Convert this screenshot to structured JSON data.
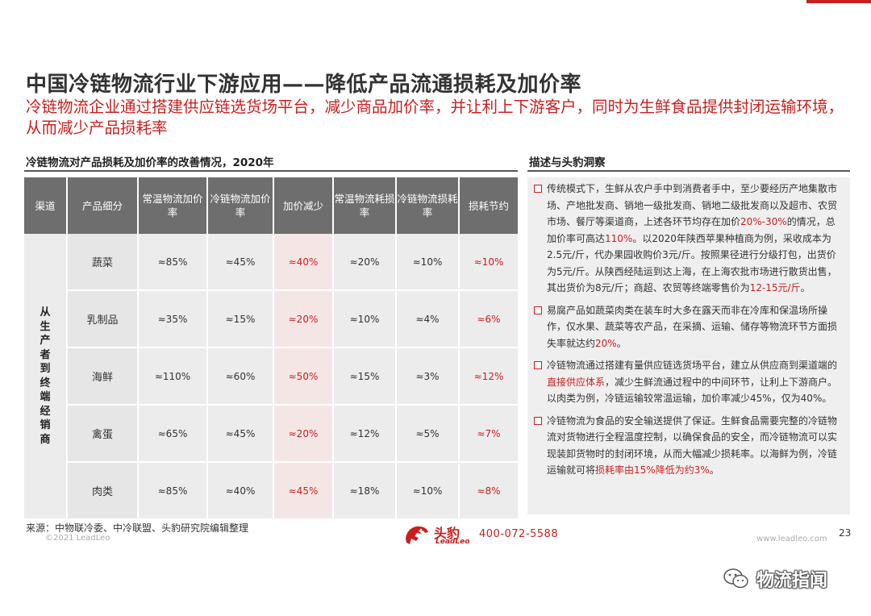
{
  "title": "中国冷链物流行业下游应用——降低产品流通损耗及加价率",
  "subtitle": "冷链物流企业通过搭建供应链选货场平台，减少商品加价率，并让利上下游客户，同时为生鲜食品提供封闭运输环境，从而减少产品损耗率",
  "left_section": {
    "heading": "冷链物流对产品损耗及加价率的改善情况，2020年"
  },
  "table": {
    "headers": [
      "渠道",
      "产品细分",
      "常温物流加价率",
      "冷链物流加价率",
      "加价减少",
      "常温物流耗损率",
      "冷链物流损耗率",
      "损耗节约"
    ],
    "channel": "从生产者到终端经销商",
    "rows": [
      {
        "cat": "蔬菜",
        "v1": "≈85%",
        "v2": "≈45%",
        "v3": "≈40%",
        "v4": "≈20%",
        "v5": "≈10%",
        "v6": "≈10%"
      },
      {
        "cat": "乳制品",
        "v1": "≈35%",
        "v2": "≈15%",
        "v3": "≈20%",
        "v4": "≈10%",
        "v5": "≈4%",
        "v6": "≈6%"
      },
      {
        "cat": "海鲜",
        "v1": "≈110%",
        "v2": "≈60%",
        "v3": "≈50%",
        "v4": "≈15%",
        "v5": "≈3%",
        "v6": "≈12%"
      },
      {
        "cat": "禽蛋",
        "v1": "≈65%",
        "v2": "≈45%",
        "v3": "≈20%",
        "v4": "≈12%",
        "v5": "≈5%",
        "v6": "≈7%"
      },
      {
        "cat": "肉类",
        "v1": "≈85%",
        "v2": "≈40%",
        "v3": "≈45%",
        "v4": "≈18%",
        "v5": "≈10%",
        "v6": "≈8%"
      }
    ]
  },
  "right_section": {
    "heading": "描述与头豹洞察",
    "items": [
      {
        "a": "传统模式下，生鲜从农户手中到消费者手中，至少要经历产地集散市场、产地批发商、销地一级批发商、销地二级批发商以及超市、农贸市场、餐厅等渠道商，上述各环节均存在加价",
        "hl1": "20%-30%",
        "b": "的情况，总加价率可高达",
        "hl2": "110%",
        "c": "。以2020年陕西苹果种植商为例，采收成本为2.5元/斤，代办果园收购价3元/斤。按照果径进行分级打包，出货价为5元/斤。从陕西经陆运到达上海，在上海农批市场进行散货出售，其出货价为8元/斤；商超、农贸等终端零售价为",
        "hl3": "12-15元/斤",
        "d": "。"
      },
      {
        "a": "易腐产品如蔬菜肉类在装车时大多在露天而非在冷库和保温场所操作，仅水果、蔬菜等农产品，在采摘、运输、储存等物流环节方面损失率就达约",
        "hl1": "20%",
        "b": "。"
      },
      {
        "a": "冷链物流通过搭建有量供应链选货场平台，建立从供应商到渠道端的",
        "hl1": "直接供应体系",
        "b": "，减少生鲜流通过程中的中间环节，让利上下游商户。以肉类为例，冷链运输较常温运输，加价率减少45%，仅为40%。"
      },
      {
        "a": "冷链物流为食品的安全输送提供了保证。生鲜食品需要完整的冷链物流对货物进行全程温度控制，以确保食品的安全，而冷链物流可以实现装卸货物时的封闭环境，从而大幅减少损耗率。以海鲜为例，冷链运输就可将",
        "hl1": "损耗率由15%降低为约3%",
        "b": "。"
      }
    ]
  },
  "footer": {
    "source": "来源：中物联冷委、中冷联盟、头豹研究院编辑整理",
    "copyright": "©2021 LeadLeo",
    "logo_cn": "头豹",
    "logo_en": "LeadLeo",
    "phone": "400-072-5588",
    "website": "www.leadleo.com",
    "page_number": "23"
  },
  "watermark": {
    "text": "物流指闻",
    "icon": "wechat-icon"
  },
  "colors": {
    "accent": "#c9201f",
    "header_gray": "#6e6e6e",
    "cell_gray": "#ececec"
  }
}
